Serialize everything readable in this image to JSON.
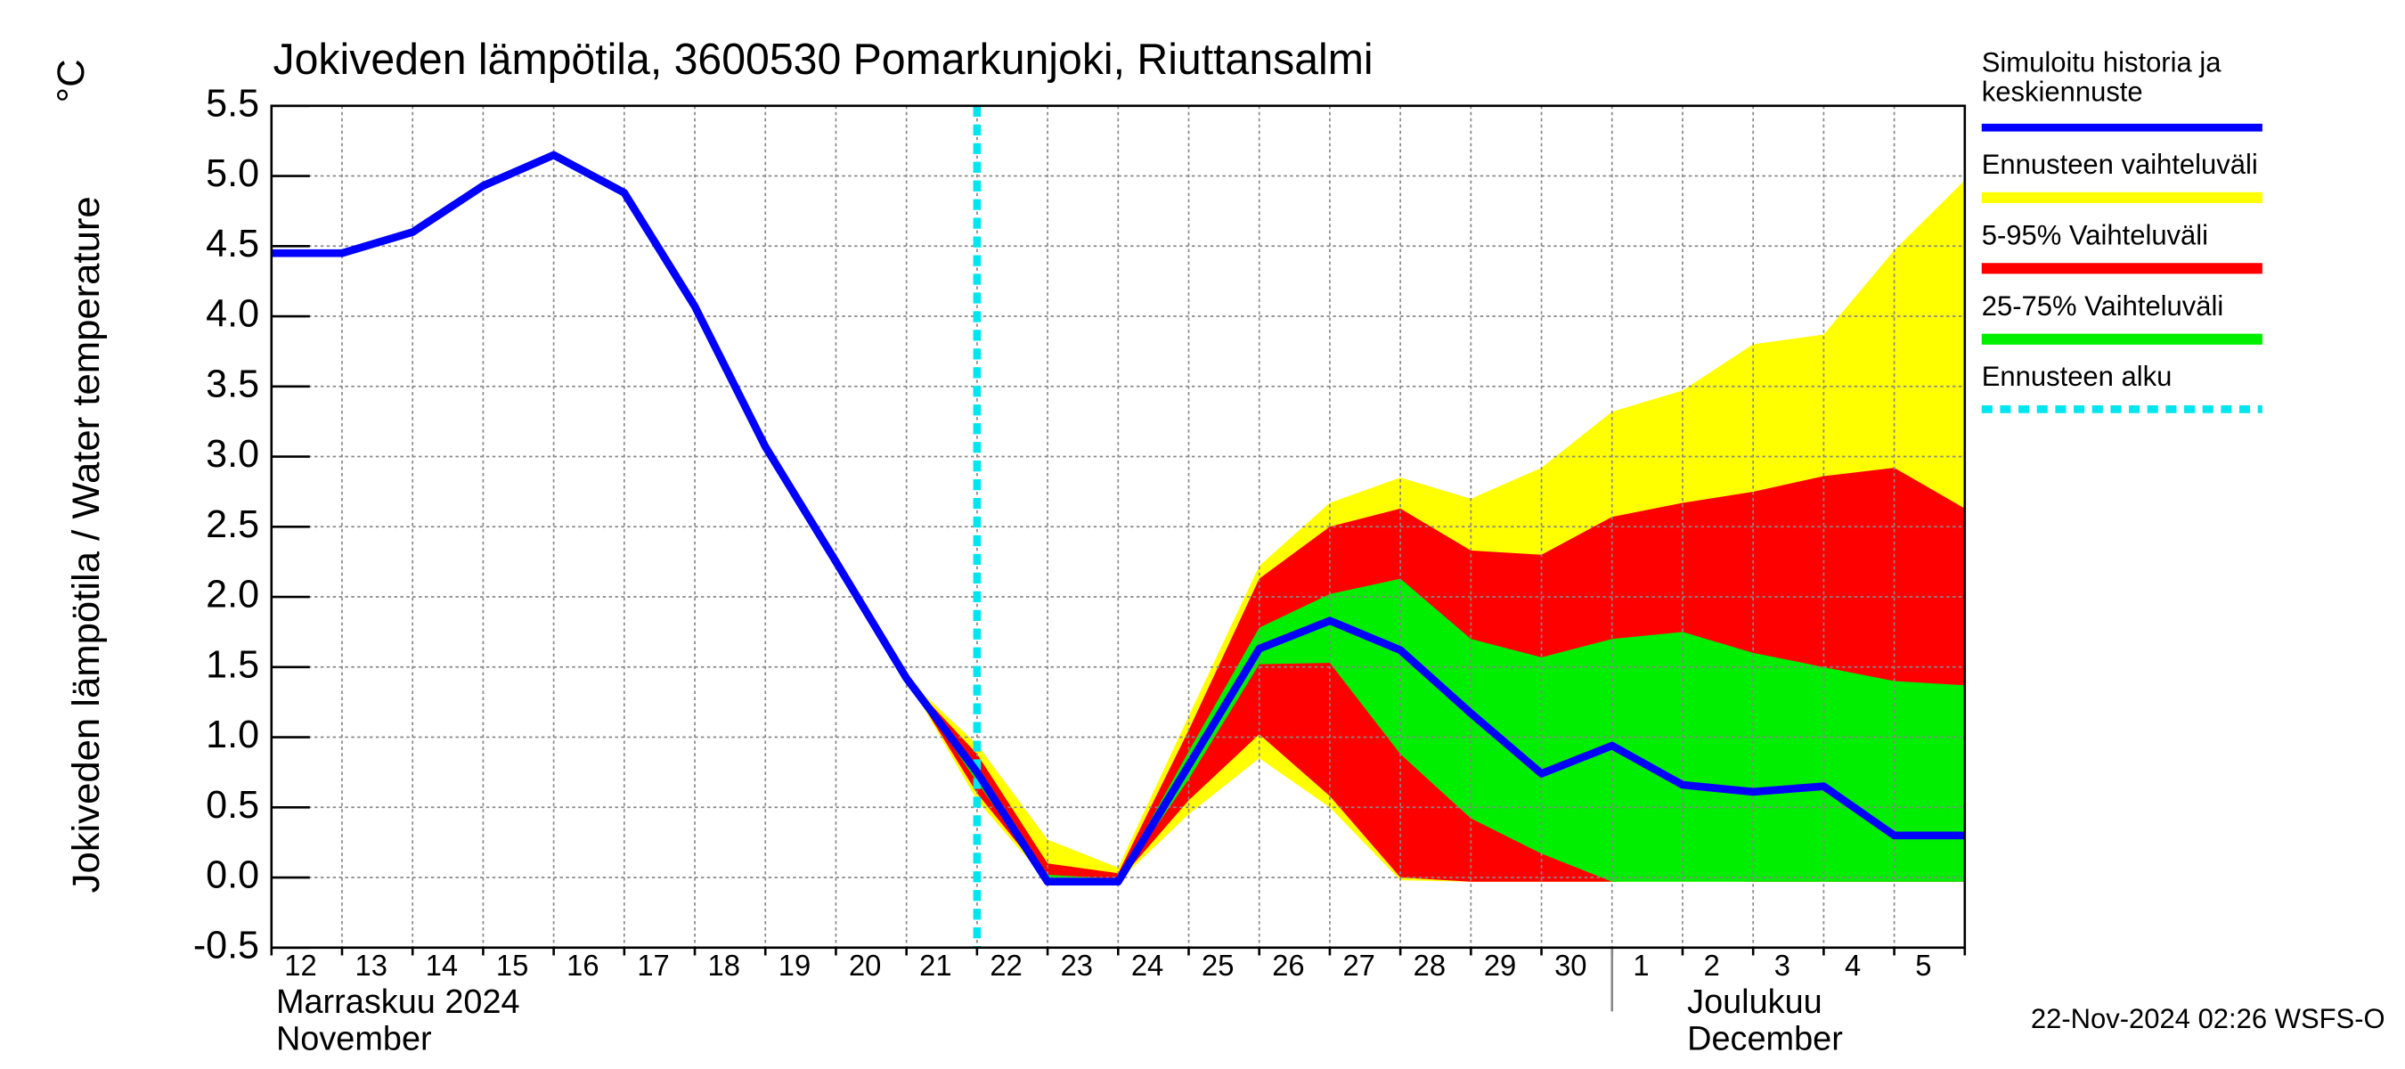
{
  "chart_data": {
    "type": "line",
    "title": "Jokiveden lämpötila, 3600530 Pomarkunjoki, Riuttansalmi",
    "y_label": "Jokiveden lämpötila / Water temperature",
    "y_unit": "°C",
    "categories": [
      "12",
      "13",
      "14",
      "15",
      "16",
      "17",
      "18",
      "19",
      "20",
      "21",
      "22",
      "23",
      "24",
      "25",
      "26",
      "27",
      "28",
      "29",
      "30",
      "1",
      "2",
      "3",
      "4",
      "5",
      null
    ],
    "months": [
      {
        "fi": "Marraskuu 2024",
        "en": "November",
        "start": 0
      },
      {
        "fi": "Joulukuu",
        "en": "December",
        "start": 19
      }
    ],
    "series": [
      {
        "name": "Simuloitu historia ja keskiennuste",
        "color": "#0000ff",
        "values": [
          4.45,
          4.45,
          4.6,
          4.93,
          5.15,
          4.88,
          4.07,
          3.07,
          2.25,
          1.42,
          0.75,
          -0.03,
          -0.03,
          0.8,
          1.63,
          1.83,
          1.62,
          1.17,
          0.74,
          0.94,
          0.66,
          0.61,
          0.65,
          0.3,
          0.3
        ]
      },
      {
        "name": "Ennusteen vaihteluväli",
        "color": "#ffff00",
        "upper": [
          null,
          null,
          null,
          null,
          null,
          null,
          null,
          null,
          null,
          1.42,
          0.95,
          0.27,
          0.07,
          1.15,
          2.22,
          2.67,
          2.85,
          2.7,
          2.92,
          3.32,
          3.47,
          3.8,
          3.87,
          4.47,
          4.97
        ],
        "lower": [
          null,
          null,
          null,
          null,
          null,
          null,
          null,
          null,
          null,
          1.42,
          0.55,
          -0.03,
          -0.03,
          0.45,
          0.85,
          0.5,
          -0.02,
          -0.03,
          -0.03,
          -0.03,
          -0.03,
          -0.03,
          -0.03,
          -0.03,
          -0.03
        ]
      },
      {
        "name": "5-95% Vaihteluväli",
        "color": "#ff0000",
        "upper": [
          null,
          null,
          null,
          null,
          null,
          null,
          null,
          null,
          null,
          1.42,
          0.88,
          0.1,
          0.03,
          1.05,
          2.13,
          2.5,
          2.63,
          2.33,
          2.3,
          2.57,
          2.67,
          2.75,
          2.86,
          2.92,
          2.63
        ],
        "lower": [
          null,
          null,
          null,
          null,
          null,
          null,
          null,
          null,
          null,
          1.42,
          0.6,
          -0.02,
          -0.03,
          0.55,
          1.02,
          0.58,
          0.0,
          -0.03,
          -0.03,
          -0.03,
          -0.02,
          -0.03,
          -0.03,
          -0.03,
          -0.03
        ]
      },
      {
        "name": "25-75% Vaihteluväli",
        "color": "#00ee00",
        "upper": [
          null,
          null,
          null,
          null,
          null,
          null,
          null,
          null,
          null,
          1.42,
          0.8,
          0.02,
          -0.01,
          0.9,
          1.78,
          2.02,
          2.13,
          1.7,
          1.57,
          1.7,
          1.75,
          1.6,
          1.5,
          1.4,
          1.37
        ],
        "lower": [
          null,
          null,
          null,
          null,
          null,
          null,
          null,
          null,
          null,
          1.42,
          0.68,
          -0.03,
          -0.03,
          0.7,
          1.52,
          1.53,
          0.88,
          0.42,
          0.17,
          -0.03,
          -0.03,
          -0.03,
          -0.03,
          -0.03,
          -0.03
        ]
      }
    ],
    "forecast_start": {
      "name": "Ennusteen alku",
      "color": "#00e5ee",
      "index": 10
    },
    "ylim": [
      -0.5,
      5.5
    ],
    "yticks": [
      {
        "value": -0.5,
        "label": "-0.5"
      },
      {
        "value": 0,
        "label": "0.0"
      },
      0.5,
      {
        "value": 1,
        "label": "1.0"
      },
      1.5,
      {
        "value": 2,
        "label": "2.0"
      },
      2.5,
      {
        "value": 3,
        "label": "3.0"
      },
      3.5,
      {
        "value": 4,
        "label": "4.0"
      },
      4.5,
      {
        "value": 5,
        "label": "5.0"
      },
      5.5
    ],
    "grid": true,
    "timestamp": "22-Nov-2024 02:26 WSFS-O"
  }
}
